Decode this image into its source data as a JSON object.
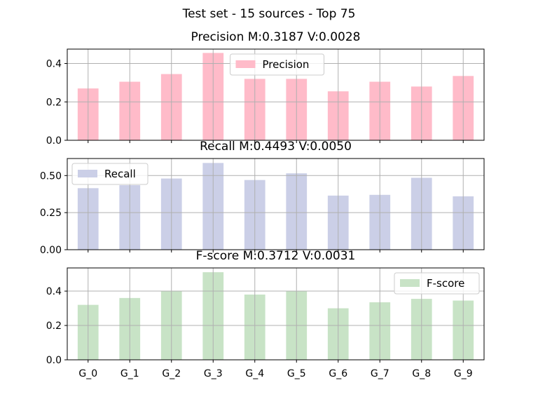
{
  "figure": {
    "suptitle": "Test set - 15 sources - Top 75"
  },
  "chart_data": [
    {
      "type": "bar",
      "title": "Precision M:0.3187 V:0.0028",
      "categories": [
        "G_0",
        "G_1",
        "G_2",
        "G_3",
        "G_4",
        "G_5",
        "G_6",
        "G_7",
        "G_8",
        "G_9"
      ],
      "series": [
        {
          "name": "Precision",
          "color": "#ffbbc9",
          "values": [
            0.27,
            0.305,
            0.345,
            0.455,
            0.32,
            0.32,
            0.255,
            0.305,
            0.28,
            0.335
          ]
        }
      ],
      "ylim": [
        0,
        0.475
      ],
      "yticks": [
        0.0,
        0.2,
        0.4
      ],
      "ytick_labels": [
        "0.0",
        "0.2",
        "0.4"
      ],
      "grid": true,
      "legend_placement": "top-center",
      "show_xticklabels": false
    },
    {
      "type": "bar",
      "title": "Recall M:0.4493 V:0.0050",
      "categories": [
        "G_0",
        "G_1",
        "G_2",
        "G_3",
        "G_4",
        "G_5",
        "G_6",
        "G_7",
        "G_8",
        "G_9"
      ],
      "series": [
        {
          "name": "Recall",
          "color": "#cbcfe7",
          "values": [
            0.415,
            0.435,
            0.48,
            0.585,
            0.47,
            0.515,
            0.365,
            0.37,
            0.485,
            0.36
          ]
        }
      ],
      "ylim": [
        0,
        0.615
      ],
      "yticks": [
        0.0,
        0.25,
        0.5
      ],
      "ytick_labels": [
        "0.00",
        "0.25",
        "0.50"
      ],
      "grid": true,
      "legend_placement": "top-left",
      "show_xticklabels": false
    },
    {
      "type": "bar",
      "title": "F-score M:0.3712 V:0.0031",
      "categories": [
        "G_0",
        "G_1",
        "G_2",
        "G_3",
        "G_4",
        "G_5",
        "G_6",
        "G_7",
        "G_8",
        "G_9"
      ],
      "series": [
        {
          "name": "F-score",
          "color": "#c8e3c6",
          "values": [
            0.32,
            0.36,
            0.4,
            0.51,
            0.38,
            0.4,
            0.3,
            0.335,
            0.355,
            0.345
          ]
        }
      ],
      "ylim": [
        0,
        0.535
      ],
      "yticks": [
        0.0,
        0.2,
        0.4
      ],
      "ytick_labels": [
        "0.0",
        "0.2",
        "0.4"
      ],
      "grid": true,
      "legend_placement": "top-right",
      "show_xticklabels": true
    }
  ]
}
